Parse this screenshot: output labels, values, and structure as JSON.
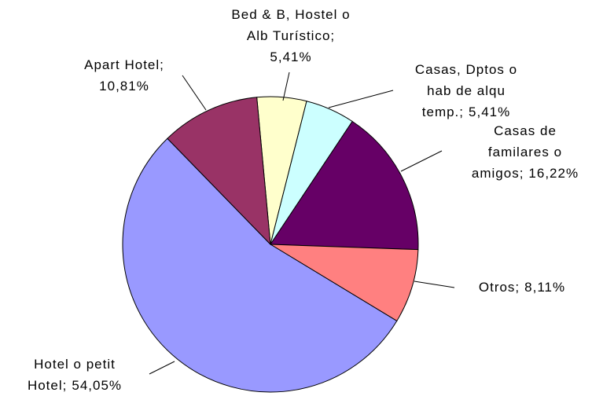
{
  "chart_data": {
    "type": "pie",
    "categories": [
      "Bed & B, Hostel o Alb Turístico;",
      "Casas, Dptos o hab de alqu temp.;",
      "Casas de familares o amigos;",
      "Otros;",
      "Hotel o petit Hotel;",
      "Apart Hotel;"
    ],
    "values": [
      5.41,
      5.41,
      16.22,
      8.11,
      54.05,
      10.81
    ],
    "value_labels": [
      "5,41%",
      "5,41%",
      "16,22%",
      "8,11%",
      "54,05%",
      "10,81%"
    ],
    "colors": [
      "#ffffcc",
      "#ccffff",
      "#660066",
      "#ff8080",
      "#9999ff",
      "#993366"
    ]
  }
}
